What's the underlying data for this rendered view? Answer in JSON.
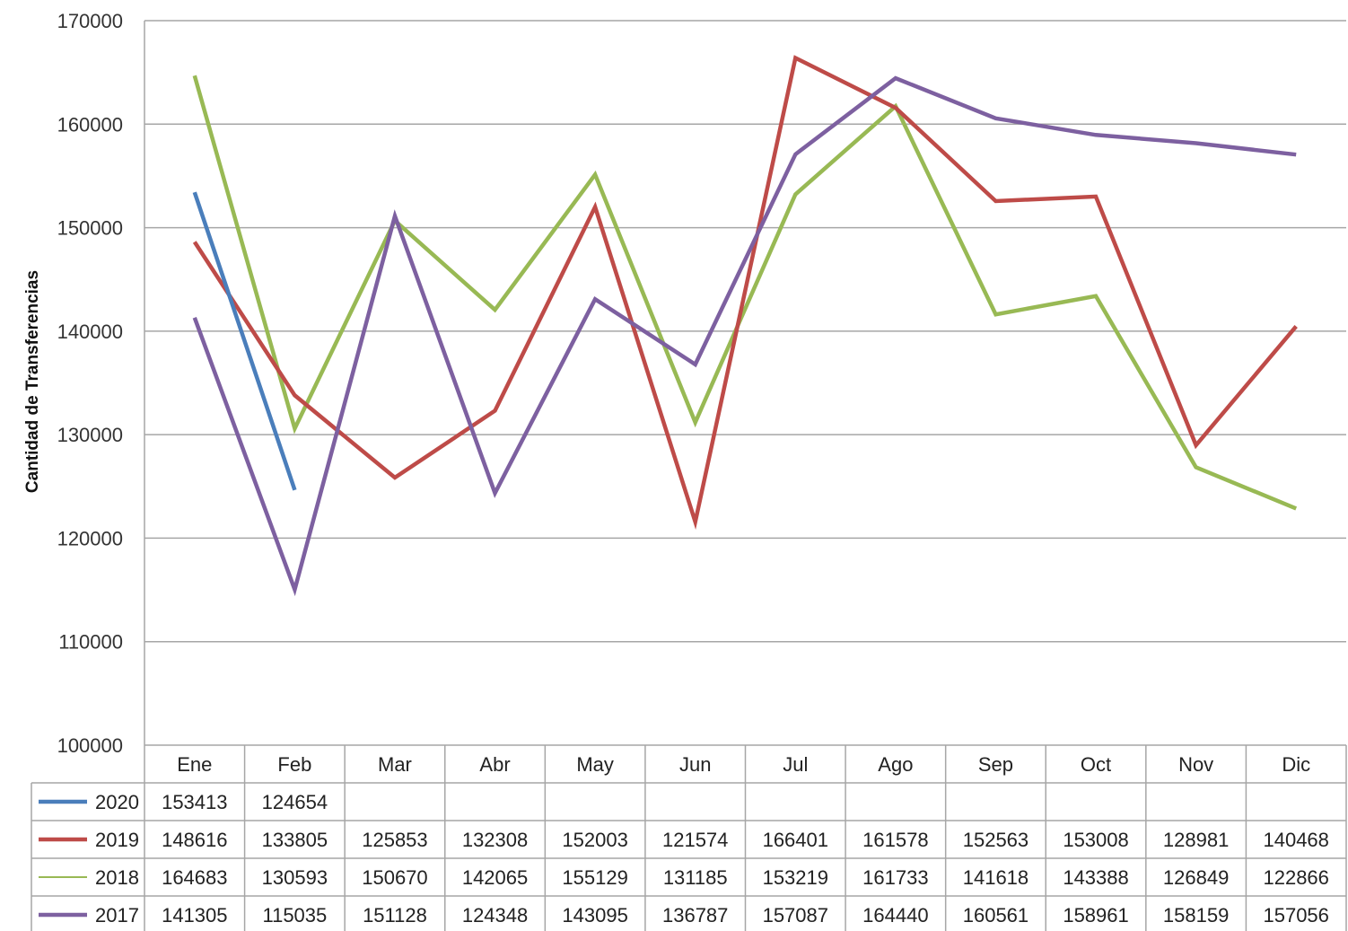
{
  "chart_data": {
    "type": "line",
    "title": "",
    "xlabel": "",
    "ylabel": "Cantidad de Transferencias",
    "categories": [
      "Ene",
      "Feb",
      "Mar",
      "Abr",
      "May",
      "Jun",
      "Jul",
      "Ago",
      "Sep",
      "Oct",
      "Nov",
      "Dic"
    ],
    "ylim": [
      100000,
      170000
    ],
    "yticks": [
      "100000",
      "110000",
      "120000",
      "130000",
      "140000",
      "150000",
      "160000",
      "170000"
    ],
    "grid": true,
    "legend": "data-table-left",
    "series": [
      {
        "name": "2020",
        "color": "#4a7ebb",
        "values": [
          153413,
          124654,
          null,
          null,
          null,
          null,
          null,
          null,
          null,
          null,
          null,
          null
        ]
      },
      {
        "name": "2019",
        "color": "#be4b48",
        "values": [
          148616,
          133805,
          125853,
          132308,
          152003,
          121574,
          166401,
          161578,
          152563,
          153008,
          128981,
          140468
        ]
      },
      {
        "name": "2018",
        "color": "#98b954",
        "values": [
          164683,
          130593,
          150670,
          142065,
          155129,
          131185,
          153219,
          161733,
          141618,
          143388,
          126849,
          122866
        ]
      },
      {
        "name": "2017",
        "color": "#7d60a0",
        "values": [
          141305,
          115035,
          151128,
          124348,
          143095,
          136787,
          157087,
          164440,
          160561,
          158961,
          158159,
          157056
        ]
      }
    ]
  }
}
